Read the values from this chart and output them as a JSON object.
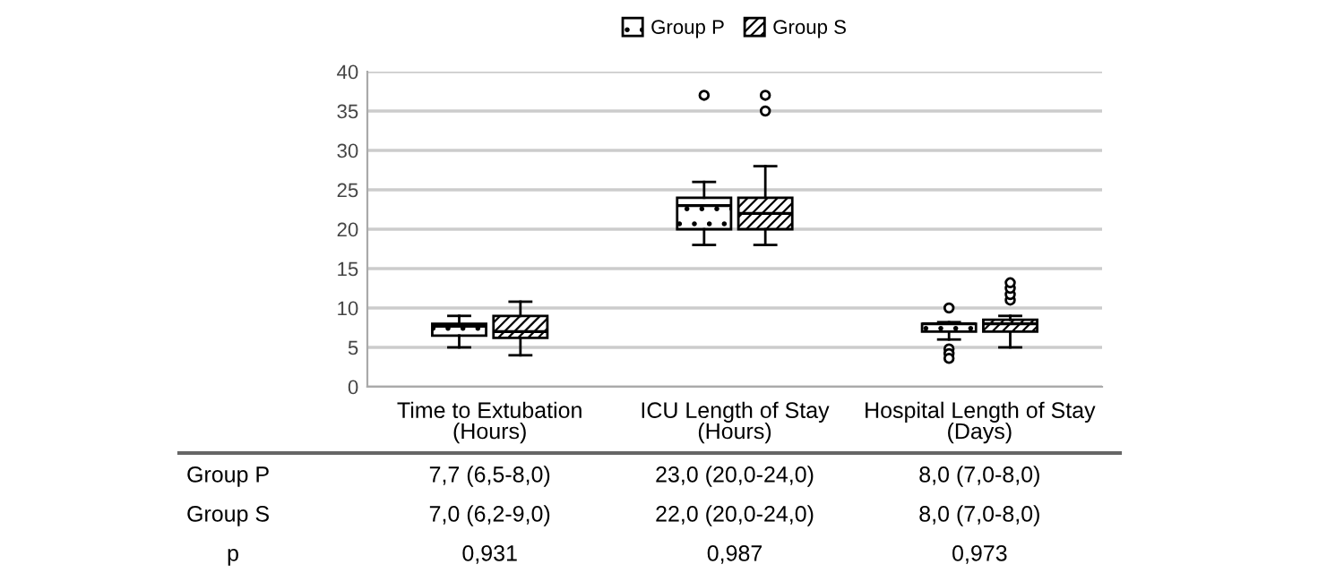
{
  "chart_data": {
    "type": "box",
    "categories": [
      "Time to Extubation\n(Hours)",
      "ICU Length of Stay\n(Hours)",
      "Hospital Length of Stay\n(Days)"
    ],
    "series": [
      {
        "name": "Group P",
        "color": "#000000",
        "boxes": [
          {
            "low": 5,
            "q1": 6.5,
            "median": 7.7,
            "q3": 8,
            "high": 9
          },
          {
            "low": 18,
            "q1": 20,
            "median": 23,
            "q3": 24,
            "high": 26,
            "outliers": [
              37
            ]
          },
          {
            "low": 6,
            "q1": 7,
            "median": 8,
            "q3": 8,
            "high": 8.2,
            "outliers": [
              10,
              4.8,
              4.2,
              3.6
            ]
          }
        ]
      },
      {
        "name": "Group S",
        "color": "#000000",
        "boxes": [
          {
            "low": 4,
            "q1": 6.2,
            "median": 7,
            "q3": 9,
            "high": 10.8
          },
          {
            "low": 18,
            "q1": 20,
            "median": 22,
            "q3": 24,
            "high": 28,
            "outliers": [
              35,
              37
            ]
          },
          {
            "low": 5,
            "q1": 7,
            "median": 8,
            "q3": 8.5,
            "high": 9,
            "outliers": [
              11,
              11.7,
              12.5,
              13.2
            ]
          }
        ]
      }
    ],
    "ylim": [
      0,
      40
    ],
    "yticks": [
      0,
      5,
      10,
      15,
      20,
      25,
      30,
      35,
      40
    ],
    "grid": "y",
    "legend": "top",
    "annotations": [
      "Group P",
      "7,7 (6,5-8,0)",
      "23,0 (20,0-24,0)",
      "8,0 (7,0-8,0)",
      "Group S",
      "7,0 (6,2-9,0)",
      "22,0 (20,0-24,0)",
      "8,0 (7,0-8,0)",
      "p",
      "0,931",
      "0,987",
      "0,973"
    ]
  }
}
